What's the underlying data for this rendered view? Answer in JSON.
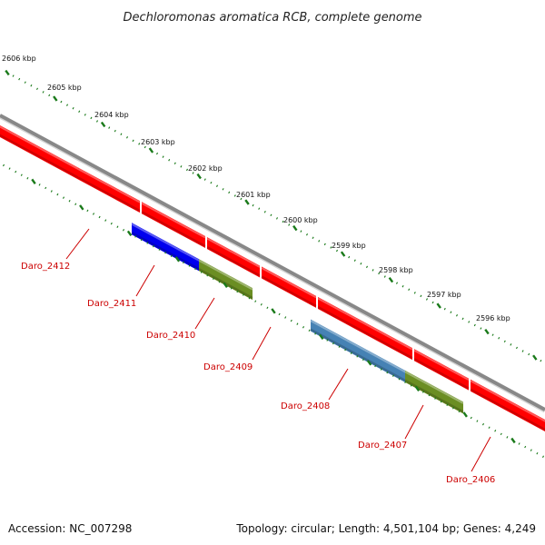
{
  "title": "Dechloromonas aromatica RCB, complete genome",
  "footer": {
    "accession": "Accession: NC_007298",
    "topology": "Topology: circular; Length: 4,501,104 bp; Genes: 4,249"
  },
  "colors": {
    "backbone": "#888888",
    "plus_strand_gene": "#ff0000",
    "tick": "#1a7a1a",
    "label": "#cc0000",
    "gene_palette": [
      "#0000ee",
      "#6b8e23",
      "#4682b4"
    ]
  },
  "ruler_labels": [
    "2606 kbp",
    "2605 kbp",
    "2604 kbp",
    "2603 kbp",
    "2602 kbp",
    "2601 kbp",
    "2600 kbp",
    "2599 kbp",
    "2598 kbp",
    "2597 kbp",
    "2596 kbp"
  ],
  "plus_genes": [
    1,
    2,
    3,
    4,
    5,
    6,
    7,
    8
  ],
  "minus_genes": [
    {
      "color": "#0000ee"
    },
    {
      "color": "#6b8e23"
    },
    {
      "color": "#4682b4"
    },
    {
      "color": "#6b8e23"
    }
  ],
  "gene_labels": [
    "Daro_2412",
    "Daro_2411",
    "Daro_2410",
    "Daro_2409",
    "Daro_2408",
    "Daro_2407",
    "Daro_2406"
  ]
}
